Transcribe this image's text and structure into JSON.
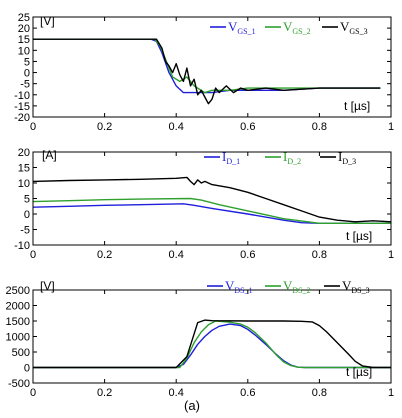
{
  "caption": "(a)",
  "chart_data": [
    {
      "type": "line",
      "unit_label": "[V]",
      "xlabel": "t [µs]",
      "xlim": [
        0,
        1
      ],
      "ylim": [
        -20,
        25
      ],
      "xticks": [
        "0",
        "0.2",
        "0.4",
        "0.6",
        "0.8",
        "1"
      ],
      "yticks": [
        "-20",
        "-15",
        "-10",
        "-5",
        "0",
        "5",
        "10",
        "15",
        "20",
        "25"
      ],
      "legend_position": "top-right",
      "series": [
        {
          "name": "V",
          "sub": "GS_1",
          "color": "#1f1fdc",
          "x": [
            0,
            0.33,
            0.345,
            0.36,
            0.38,
            0.4,
            0.42,
            0.45,
            0.5,
            0.55,
            0.6,
            0.7,
            0.8,
            0.9,
            0.97
          ],
          "y": [
            15,
            15,
            14,
            9,
            0,
            -6,
            -9,
            -9,
            -9,
            -8,
            -8,
            -8,
            -7,
            -7,
            -7
          ]
        },
        {
          "name": "V",
          "sub": "GS_2",
          "color": "#2ea02e",
          "x": [
            0,
            0.34,
            0.355,
            0.37,
            0.39,
            0.41,
            0.43,
            0.45,
            0.48,
            0.5,
            0.55,
            0.6,
            0.7,
            0.8,
            0.9,
            0.97
          ],
          "y": [
            15,
            15,
            12,
            6,
            -2,
            -4,
            -2,
            -6,
            -9,
            -8,
            -8,
            -7,
            -7,
            -7,
            -7,
            -7
          ]
        },
        {
          "name": "V",
          "sub": "GS_3",
          "color": "#000000",
          "x": [
            0,
            0.345,
            0.36,
            0.37,
            0.38,
            0.39,
            0.4,
            0.41,
            0.42,
            0.43,
            0.44,
            0.45,
            0.46,
            0.47,
            0.48,
            0.49,
            0.5,
            0.51,
            0.52,
            0.54,
            0.56,
            0.58,
            0.6,
            0.65,
            0.7,
            0.8,
            0.9,
            0.97
          ],
          "y": [
            15,
            15,
            11,
            5,
            3,
            0,
            4,
            -1,
            -4,
            2,
            -6,
            -3,
            -10,
            -8,
            -11,
            -14,
            -12,
            -7,
            -9,
            -6,
            -9,
            -7,
            -8,
            -7,
            -8,
            -7,
            -7,
            -7
          ]
        }
      ]
    },
    {
      "type": "line",
      "unit_label": "[A]",
      "xlabel": "t [µs]",
      "xlim": [
        0,
        1
      ],
      "ylim": [
        -10,
        20
      ],
      "xticks": [
        "0",
        "0.2",
        "0.4",
        "0.6",
        "0.8",
        "1"
      ],
      "yticks": [
        "-10",
        "-5",
        "0",
        "5",
        "10",
        "15",
        "20"
      ],
      "legend_position": "top-right",
      "series": [
        {
          "name": "I",
          "sub": "D_1",
          "color": "#1f1fdc",
          "x": [
            0,
            0.1,
            0.2,
            0.3,
            0.42,
            0.45,
            0.5,
            0.6,
            0.7,
            0.75,
            0.8,
            0.9,
            1.0
          ],
          "y": [
            2.2,
            2.5,
            2.8,
            3.0,
            3.3,
            2.8,
            1.8,
            0,
            -2,
            -2.8,
            -3,
            -3,
            -3
          ]
        },
        {
          "name": "I",
          "sub": "D_2",
          "color": "#2ea02e",
          "x": [
            0,
            0.1,
            0.2,
            0.3,
            0.44,
            0.47,
            0.52,
            0.6,
            0.7,
            0.8,
            0.9,
            1.0
          ],
          "y": [
            4.0,
            4.3,
            4.6,
            4.8,
            5.0,
            4.5,
            3.0,
            1,
            -1.5,
            -3,
            -3,
            -3
          ]
        },
        {
          "name": "I",
          "sub": "D_3",
          "color": "#000000",
          "x": [
            0,
            0.1,
            0.2,
            0.3,
            0.4,
            0.43,
            0.44,
            0.45,
            0.46,
            0.47,
            0.48,
            0.5,
            0.55,
            0.6,
            0.65,
            0.7,
            0.75,
            0.8,
            0.85,
            0.9,
            0.95,
            1.0
          ],
          "y": [
            10.5,
            10.8,
            11.0,
            11.2,
            11.5,
            11.8,
            10.5,
            9.5,
            11.0,
            10.0,
            10.5,
            9.5,
            8.5,
            7.0,
            5.0,
            3.0,
            1.0,
            -1.0,
            -2.0,
            -2.5,
            -2.2,
            -2.5
          ]
        }
      ]
    },
    {
      "type": "line",
      "unit_label": "[V]",
      "xlabel": "t [µs]",
      "xlim": [
        0,
        1
      ],
      "ylim": [
        -500,
        2500
      ],
      "xticks": [
        "0",
        "0.2",
        "0.4",
        "0.6",
        "0.8",
        "1"
      ],
      "yticks": [
        "-500",
        "0",
        "500",
        "1000",
        "1500",
        "2000",
        "2500"
      ],
      "legend_position": "top-right",
      "series": [
        {
          "name": "V",
          "sub": "DS_1",
          "color": "#1f1fdc",
          "x": [
            0,
            0.4,
            0.42,
            0.44,
            0.46,
            0.48,
            0.5,
            0.52,
            0.55,
            0.58,
            0.6,
            0.62,
            0.65,
            0.68,
            0.7,
            0.72,
            0.74,
            0.76,
            1.0
          ],
          "y": [
            0,
            0,
            100,
            400,
            750,
            1000,
            1200,
            1330,
            1400,
            1350,
            1230,
            1050,
            750,
            420,
            220,
            80,
            10,
            0,
            0
          ]
        },
        {
          "name": "V",
          "sub": "DS_2",
          "color": "#2ea02e",
          "x": [
            0,
            0.41,
            0.43,
            0.45,
            0.47,
            0.49,
            0.51,
            0.53,
            0.55,
            0.58,
            0.6,
            0.62,
            0.65,
            0.68,
            0.7,
            0.72,
            0.74,
            0.76,
            1.0
          ],
          "y": [
            0,
            0,
            300,
            800,
            1150,
            1380,
            1500,
            1480,
            1460,
            1400,
            1300,
            1130,
            800,
            400,
            180,
            60,
            10,
            0,
            0
          ]
        },
        {
          "name": "V",
          "sub": "DS_3",
          "color": "#000000",
          "x": [
            0,
            0.4,
            0.43,
            0.445,
            0.46,
            0.48,
            0.5,
            0.6,
            0.7,
            0.75,
            0.78,
            0.8,
            0.82,
            0.85,
            0.88,
            0.9,
            0.92,
            0.95,
            1.0
          ],
          "y": [
            0,
            0,
            350,
            900,
            1450,
            1530,
            1510,
            1500,
            1500,
            1490,
            1470,
            1350,
            1150,
            800,
            450,
            200,
            50,
            0,
            0
          ]
        }
      ]
    }
  ]
}
